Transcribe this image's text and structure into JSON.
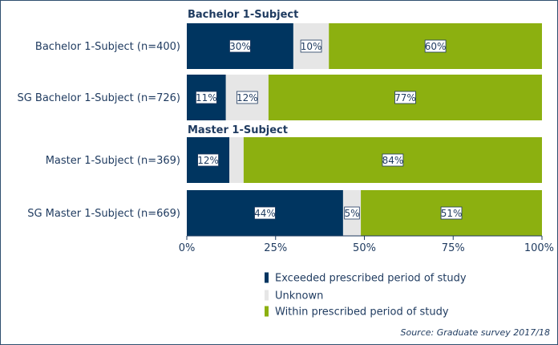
{
  "chart_data": {
    "type": "bar",
    "orientation": "horizontal",
    "stacked": "percent",
    "groups": [
      {
        "title": "Bachelor 1-Subject",
        "categories": [
          "Bachelor 1-Subject (n=400)",
          "SG Bachelor 1-Subject (n=726)"
        ]
      },
      {
        "title": "Master 1-Subject",
        "categories": [
          "Master 1-Subject (n=369)",
          "SG Master 1-Subject (n=669)"
        ]
      }
    ],
    "categories": [
      "Bachelor 1-Subject (n=400)",
      "SG Bachelor 1-Subject (n=726)",
      "Master 1-Subject (n=369)",
      "SG Master 1-Subject (n=669)"
    ],
    "series": [
      {
        "name": "Exceeded prescribed period of study",
        "color": "#003560",
        "values": [
          30,
          11,
          12,
          44
        ],
        "labels": [
          "30%",
          "11%",
          "12%",
          "44%"
        ]
      },
      {
        "name": "Unknown",
        "color": "#e6e6e6",
        "values": [
          10,
          12,
          4,
          5
        ],
        "labels": [
          "10%",
          "12%",
          "",
          "5%"
        ]
      },
      {
        "name": "Within prescribed period of study",
        "color": "#8cb010",
        "values": [
          60,
          77,
          84,
          51
        ],
        "labels": [
          "60%",
          "77%",
          "84%",
          "51%"
        ]
      }
    ],
    "xlim": [
      0,
      100
    ],
    "xticks": [
      "0%",
      "25%",
      "50%",
      "75%",
      "100%"
    ],
    "legend_position": "bottom-right",
    "source": "Source: Graduate survey 2017/18"
  }
}
